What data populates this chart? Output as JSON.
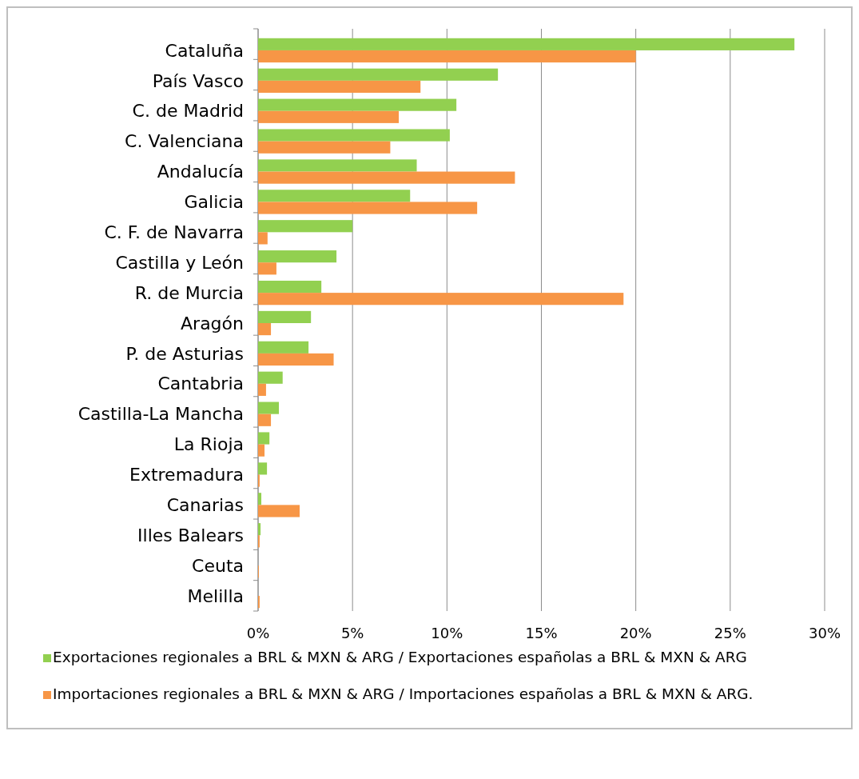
{
  "chart_data": {
    "type": "bar",
    "orientation": "horizontal",
    "categories": [
      "Cataluña",
      "País Vasco",
      "C. de Madrid",
      "C. Valenciana",
      "Andalucía",
      "Galicia",
      "C. F. de Navarra",
      "Castilla y León",
      "R. de Murcia",
      "Aragón",
      "P. de Asturias",
      "Cantabria",
      "Castilla-La Mancha",
      "La Rioja",
      "Extremadura",
      "Canarias",
      "Illes Balears",
      "Ceuta",
      "Melilla"
    ],
    "series": [
      {
        "name": "Exportaciones regionales a BRL & MXN & ARG / Exportaciones españolas a BRL & MXN & ARG",
        "color": "#92d050",
        "values": [
          28.4,
          12.7,
          10.5,
          10.15,
          8.4,
          8.05,
          5.0,
          4.15,
          3.35,
          2.8,
          2.67,
          1.3,
          1.1,
          0.6,
          0.47,
          0.17,
          0.13,
          0,
          0
        ]
      },
      {
        "name": "Importaciones regionales a BRL & MXN & ARG / Importaciones españolas a BRL & MXN & ARG.",
        "color": "#f79646",
        "values": [
          20.0,
          8.6,
          7.45,
          7.0,
          13.6,
          11.6,
          0.5,
          0.97,
          19.35,
          0.68,
          4.0,
          0.42,
          0.68,
          0.34,
          0.08,
          2.2,
          0.08,
          0.04,
          0.08
        ]
      }
    ],
    "xlim": [
      0,
      30
    ],
    "xticks": [
      {
        "value": 0,
        "label": "0%"
      },
      {
        "value": 5,
        "label": "5%"
      },
      {
        "value": 10,
        "label": "10%"
      },
      {
        "value": 15,
        "label": "15%"
      },
      {
        "value": 20,
        "label": "20%"
      },
      {
        "value": 25,
        "label": "25%"
      },
      {
        "value": 30,
        "label": "30%"
      }
    ],
    "grid": "x",
    "legend": "bottom"
  }
}
